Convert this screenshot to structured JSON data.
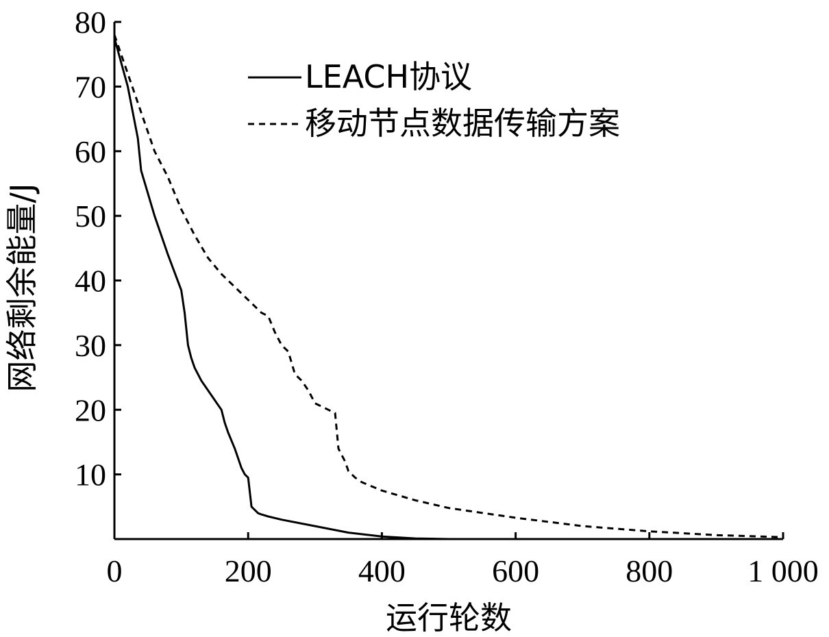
{
  "chart_data": {
    "type": "line",
    "title": "",
    "xlabel": "运行轮数",
    "ylabel": "网络剩余能量/J",
    "xlim": [
      0,
      1000
    ],
    "ylim": [
      0,
      80
    ],
    "xticks": [
      0,
      200,
      400,
      600,
      800,
      1000
    ],
    "xtick_labels": [
      "0",
      "200",
      "400",
      "600",
      "800",
      "1 000"
    ],
    "yticks": [
      10,
      20,
      30,
      40,
      50,
      60,
      70,
      80
    ],
    "ytick_labels": [
      "10",
      "20",
      "30",
      "40",
      "50",
      "60",
      "70",
      "80"
    ],
    "grid": false,
    "legend_position": "top-center",
    "series": [
      {
        "name": "LEACH协议",
        "style": "solid",
        "color": "#000000",
        "x": [
          0,
          20,
          35,
          40,
          60,
          80,
          100,
          105,
          110,
          115,
          120,
          130,
          140,
          150,
          160,
          165,
          170,
          180,
          190,
          195,
          200,
          205,
          215,
          220,
          230,
          250,
          300,
          350,
          400,
          450,
          500,
          600,
          700,
          800,
          900,
          1000
        ],
        "y": [
          77.5,
          70,
          62,
          57,
          50,
          44,
          38.5,
          35,
          30,
          28,
          26.5,
          24.5,
          23,
          21.5,
          20,
          18,
          16.5,
          14,
          11,
          10,
          9.5,
          5,
          4,
          3.8,
          3.5,
          3,
          2,
          1,
          0.4,
          0.1,
          0,
          0,
          0,
          0,
          0,
          0
        ]
      },
      {
        "name": "移动节点数据传输方案",
        "style": "dashed",
        "color": "#000000",
        "x": [
          0,
          20,
          40,
          60,
          80,
          100,
          120,
          140,
          160,
          180,
          200,
          220,
          230,
          240,
          250,
          260,
          270,
          280,
          290,
          300,
          310,
          320,
          330,
          335,
          340,
          345,
          350,
          355,
          360,
          370,
          400,
          450,
          500,
          600,
          700,
          800,
          900,
          1000
        ],
        "y": [
          78,
          72,
          66,
          60,
          56,
          51,
          47,
          43.5,
          41,
          39,
          37,
          35,
          34.5,
          32,
          30,
          29,
          25.5,
          24.5,
          23,
          21,
          20.5,
          20,
          19.5,
          14,
          13,
          12,
          10.5,
          10,
          9.5,
          8.8,
          7.5,
          6,
          4.8,
          3.3,
          2,
          1.2,
          0.6,
          0.3
        ]
      }
    ]
  }
}
